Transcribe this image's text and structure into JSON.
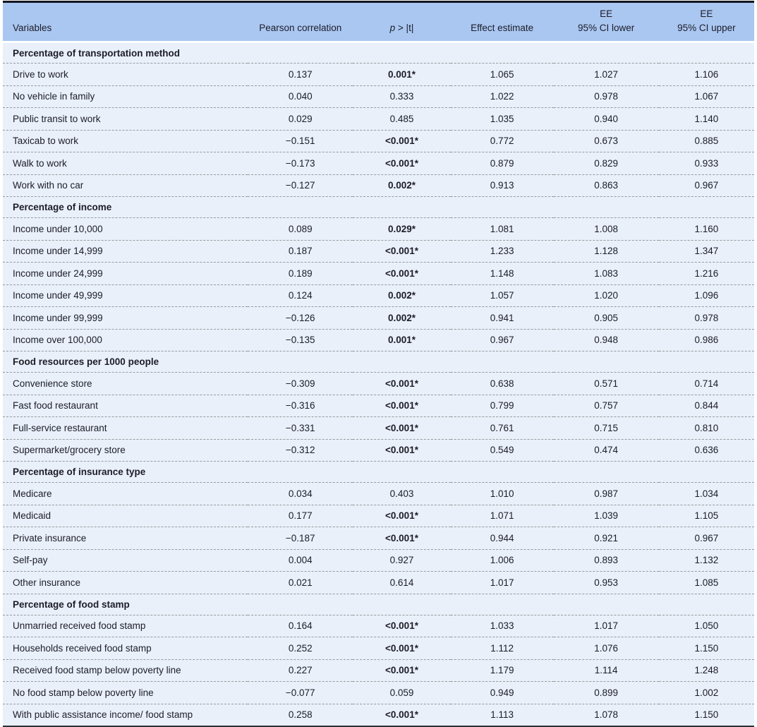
{
  "colors": {
    "header_bg": "#aac7f2",
    "row_bg": "#e9f0fa",
    "rule_dark": "#15151f",
    "rule_bottom": "#2e2e38",
    "dash": "#9a9a9a",
    "text": "#1c1c26"
  },
  "table": {
    "columns": [
      {
        "label": "Variables"
      },
      {
        "label": "Pearson correlation"
      },
      {
        "symbol": "p",
        "rest": " > |t|"
      },
      {
        "label": "Effect estimate"
      },
      {
        "line1": "EE",
        "line2": "95% CI lower"
      },
      {
        "line1": "EE",
        "line2": "95% CI upper"
      }
    ],
    "sections": [
      {
        "title": "Percentage of transportation method",
        "rows": [
          {
            "variable": "Drive to work",
            "pearson": "0.137",
            "p": "0.001*",
            "effect": "1.065",
            "ci_lower": "1.027",
            "ci_upper": "1.106"
          },
          {
            "variable": "No vehicle in family",
            "pearson": "0.040",
            "p": "0.333",
            "effect": "1.022",
            "ci_lower": "0.978",
            "ci_upper": "1.067"
          },
          {
            "variable": "Public transit to work",
            "pearson": "0.029",
            "p": "0.485",
            "effect": "1.035",
            "ci_lower": "0.940",
            "ci_upper": "1.140"
          },
          {
            "variable": "Taxicab to work",
            "pearson": "−0.151",
            "p": "<0.001*",
            "effect": "0.772",
            "ci_lower": "0.673",
            "ci_upper": "0.885"
          },
          {
            "variable": "Walk to work",
            "pearson": "−0.173",
            "p": "<0.001*",
            "effect": "0.879",
            "ci_lower": "0.829",
            "ci_upper": "0.933"
          },
          {
            "variable": "Work with no car",
            "pearson": "−0.127",
            "p": "0.002*",
            "effect": "0.913",
            "ci_lower": "0.863",
            "ci_upper": "0.967"
          }
        ]
      },
      {
        "title": "Percentage of income",
        "rows": [
          {
            "variable": "Income under 10,000",
            "pearson": "0.089",
            "p": "0.029*",
            "effect": "1.081",
            "ci_lower": "1.008",
            "ci_upper": "1.160"
          },
          {
            "variable": "Income under 14,999",
            "pearson": "0.187",
            "p": "<0.001*",
            "effect": "1.233",
            "ci_lower": "1.128",
            "ci_upper": "1.347"
          },
          {
            "variable": "Income under 24,999",
            "pearson": "0.189",
            "p": "<0.001*",
            "effect": "1.148",
            "ci_lower": "1.083",
            "ci_upper": "1.216"
          },
          {
            "variable": "Income under 49,999",
            "pearson": "0.124",
            "p": "0.002*",
            "effect": "1.057",
            "ci_lower": "1.020",
            "ci_upper": "1.096"
          },
          {
            "variable": "Income under 99,999",
            "pearson": "−0.126",
            "p": "0.002*",
            "effect": "0.941",
            "ci_lower": "0.905",
            "ci_upper": "0.978"
          },
          {
            "variable": "Income over 100,000",
            "pearson": "−0.135",
            "p": "0.001*",
            "effect": "0.967",
            "ci_lower": "0.948",
            "ci_upper": "0.986"
          }
        ]
      },
      {
        "title": "Food resources per 1000 people",
        "rows": [
          {
            "variable": "Convenience store",
            "pearson": "−0.309",
            "p": "<0.001*",
            "effect": "0.638",
            "ci_lower": "0.571",
            "ci_upper": "0.714"
          },
          {
            "variable": "Fast food restaurant",
            "pearson": "−0.316",
            "p": "<0.001*",
            "effect": "0.799",
            "ci_lower": "0.757",
            "ci_upper": "0.844"
          },
          {
            "variable": "Full-service restaurant",
            "pearson": "−0.331",
            "p": "<0.001*",
            "effect": "0.761",
            "ci_lower": "0.715",
            "ci_upper": "0.810"
          },
          {
            "variable": "Supermarket/grocery store",
            "pearson": "−0.312",
            "p": "<0.001*",
            "effect": "0.549",
            "ci_lower": "0.474",
            "ci_upper": "0.636"
          }
        ]
      },
      {
        "title": "Percentage of insurance type",
        "rows": [
          {
            "variable": "Medicare",
            "pearson": "0.034",
            "p": "0.403",
            "effect": "1.010",
            "ci_lower": "0.987",
            "ci_upper": "1.034"
          },
          {
            "variable": "Medicaid",
            "pearson": "0.177",
            "p": "<0.001*",
            "effect": "1.071",
            "ci_lower": "1.039",
            "ci_upper": "1.105"
          },
          {
            "variable": "Private insurance",
            "pearson": "−0.187",
            "p": "<0.001*",
            "effect": "0.944",
            "ci_lower": "0.921",
            "ci_upper": "0.967"
          },
          {
            "variable": "Self-pay",
            "pearson": "0.004",
            "p": "0.927",
            "effect": "1.006",
            "ci_lower": "0.893",
            "ci_upper": "1.132"
          },
          {
            "variable": "Other insurance",
            "pearson": "0.021",
            "p": "0.614",
            "effect": "1.017",
            "ci_lower": "0.953",
            "ci_upper": "1.085"
          }
        ]
      },
      {
        "title": "Percentage of food stamp",
        "rows": [
          {
            "variable": "Unmarried received food stamp",
            "pearson": "0.164",
            "p": "<0.001*",
            "effect": "1.033",
            "ci_lower": "1.017",
            "ci_upper": "1.050"
          },
          {
            "variable": "Households received food stamp",
            "pearson": "0.252",
            "p": "<0.001*",
            "effect": "1.112",
            "ci_lower": "1.076",
            "ci_upper": "1.150"
          },
          {
            "variable": "Received food stamp below poverty line",
            "pearson": "0.227",
            "p": "<0.001*",
            "effect": "1.179",
            "ci_lower": "1.114",
            "ci_upper": "1.248"
          },
          {
            "variable": "No food stamp below poverty line",
            "pearson": "−0.077",
            "p": "0.059",
            "effect": "0.949",
            "ci_lower": "0.899",
            "ci_upper": "1.002"
          },
          {
            "variable": "With public assistance income/ food stamp",
            "pearson": "0.258",
            "p": "<0.001*",
            "effect": "1.113",
            "ci_lower": "1.078",
            "ci_upper": "1.150"
          }
        ]
      }
    ]
  }
}
